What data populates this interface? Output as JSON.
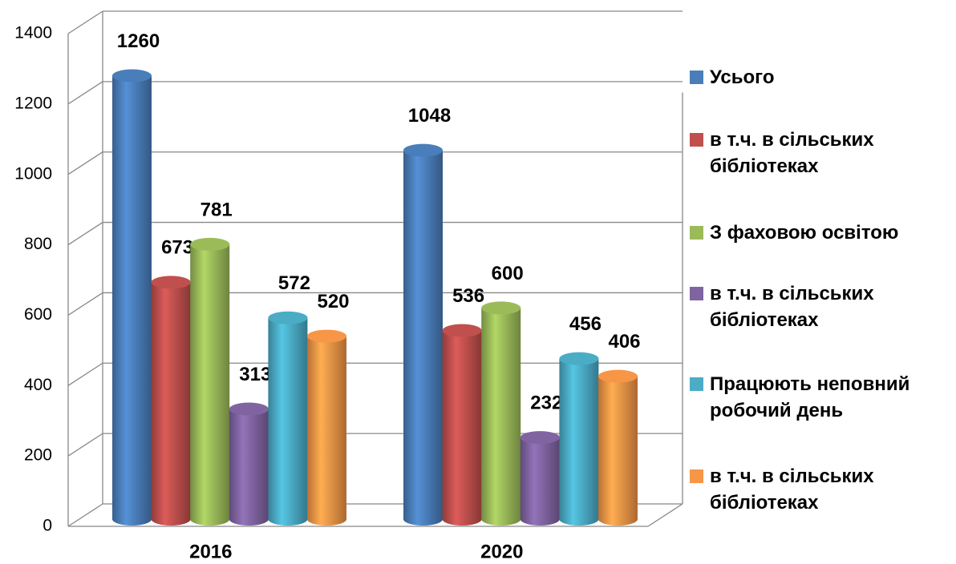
{
  "chart_data": {
    "type": "bar3d",
    "categories": [
      "2016",
      "2020"
    ],
    "series": [
      {
        "name": "Усього",
        "color": "#4a7ebb",
        "values": [
          1260,
          1048
        ]
      },
      {
        "name": "в т.ч. в сільських бібліотеках",
        "color": "#c0504d",
        "values": [
          673,
          536
        ]
      },
      {
        "name": "З фаховою освітою",
        "color": "#9bbb59",
        "values": [
          781,
          600
        ]
      },
      {
        "name": "в т.ч. в сільських бібліотеках",
        "color": "#8064a2",
        "values": [
          313,
          232
        ]
      },
      {
        "name": "Працюють неповний робочий день",
        "color": "#4bacc6",
        "values": [
          572,
          456
        ]
      },
      {
        "name": "в т.ч. в сільських бібліотеках",
        "color": "#f79646",
        "values": [
          520,
          406
        ]
      }
    ],
    "ylim": [
      0,
      1400
    ],
    "yticks": [
      0,
      200,
      400,
      600,
      800,
      1000,
      1200,
      1400
    ],
    "grid": true,
    "legend": "right"
  }
}
